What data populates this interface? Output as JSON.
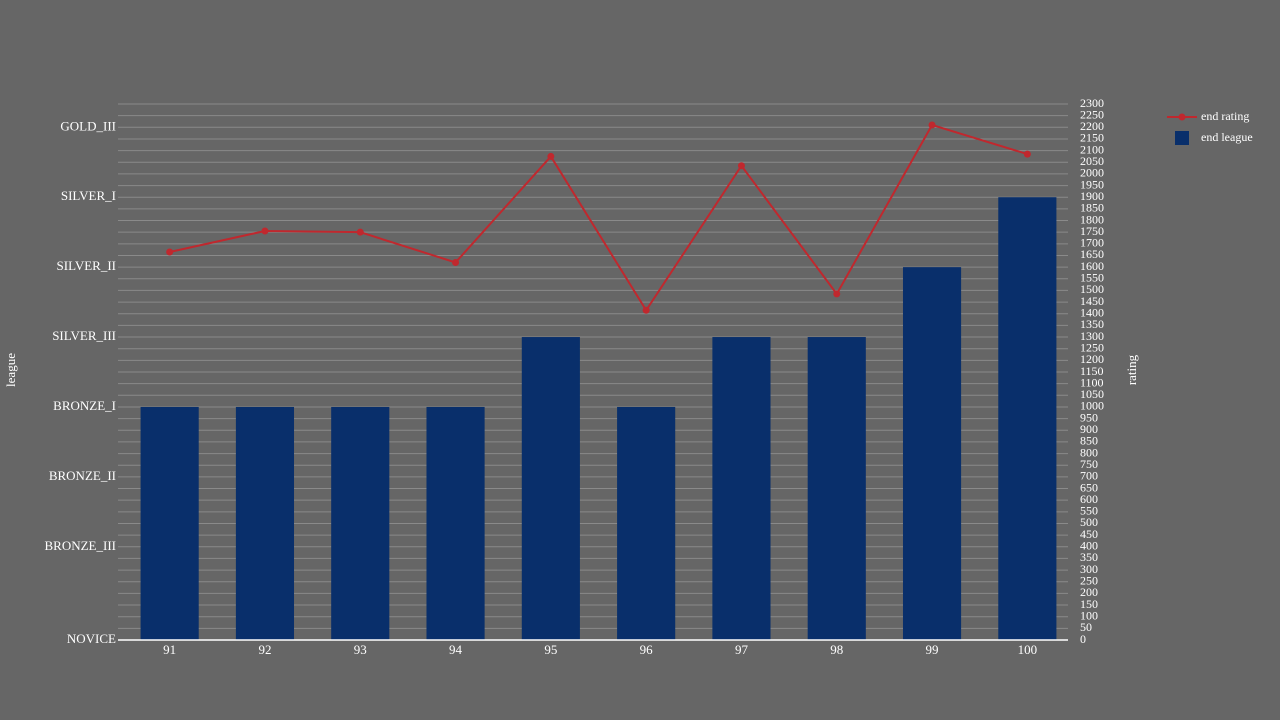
{
  "chart_data": {
    "type": "bar",
    "categories": [
      "91",
      "92",
      "93",
      "94",
      "95",
      "96",
      "97",
      "98",
      "99",
      "100"
    ],
    "series": [
      {
        "name": "end rating",
        "type": "line",
        "axis": "y2",
        "color": "#c0282e",
        "values": [
          1665,
          1755,
          1750,
          1620,
          2075,
          1415,
          2035,
          1485,
          2210,
          2085
        ]
      },
      {
        "name": "end league",
        "type": "bar",
        "axis": "y",
        "color": "#092f6b",
        "values": [
          1000,
          1000,
          1000,
          1000,
          1300,
          1000,
          1300,
          1300,
          1600,
          1900
        ]
      }
    ],
    "ylabel": "league",
    "y2label": "rating",
    "ylim": [
      0,
      2300
    ],
    "yticks": [
      {
        "value": 0,
        "label": "NOVICE"
      },
      {
        "value": 400,
        "label": "BRONZE_III"
      },
      {
        "value": 700,
        "label": "BRONZE_II"
      },
      {
        "value": 1000,
        "label": "BRONZE_I"
      },
      {
        "value": 1300,
        "label": "SILVER_III"
      },
      {
        "value": 1600,
        "label": "SILVER_II"
      },
      {
        "value": 1900,
        "label": "SILVER_I"
      },
      {
        "value": 2200,
        "label": "GOLD_III"
      }
    ],
    "y2lim": [
      0,
      2300
    ],
    "y2ticks": [
      0,
      50,
      100,
      150,
      200,
      250,
      300,
      350,
      400,
      450,
      500,
      550,
      600,
      650,
      700,
      750,
      800,
      850,
      900,
      950,
      1000,
      1050,
      1100,
      1150,
      1200,
      1250,
      1300,
      1350,
      1400,
      1450,
      1500,
      1550,
      1600,
      1650,
      1700,
      1750,
      1800,
      1850,
      1900,
      1950,
      2000,
      2050,
      2100,
      2150,
      2200,
      2250,
      2300
    ],
    "grid": true,
    "legend": "top-right"
  }
}
